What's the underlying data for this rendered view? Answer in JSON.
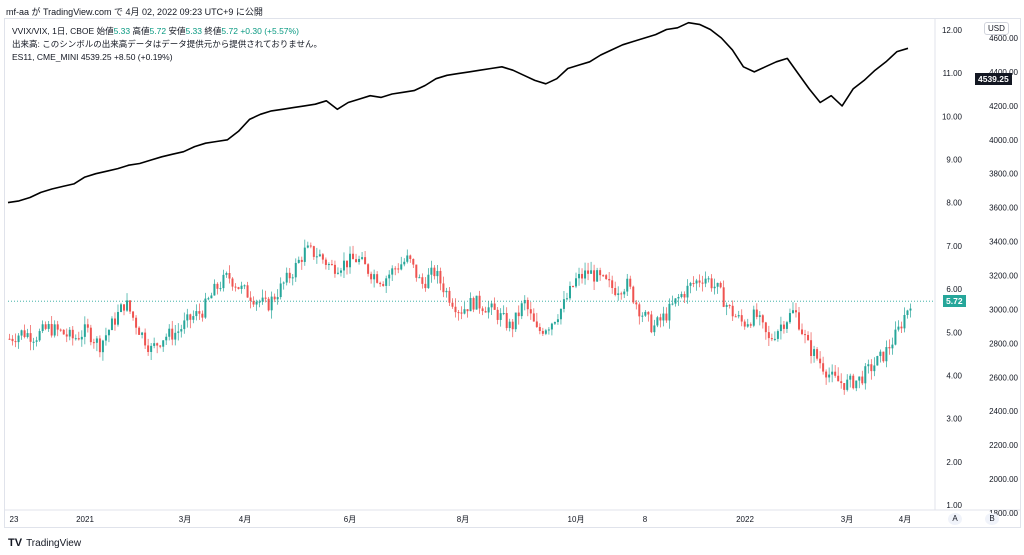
{
  "header": {
    "published_by": "mf-aa が TradingView.com で 4月 02, 2022 09:23 UTC+9 に公開"
  },
  "legend": {
    "symbol": "VVIX/VIX, 1日, CBOE",
    "open_label": "始値",
    "open": "5.33",
    "high_label": "高値",
    "high": "5.72",
    "low_label": "安値",
    "low": "5.33",
    "close_label": "終値",
    "close": "5.72",
    "change": "+0.30 (+5.57%)",
    "volume_note": "出来高: このシンボルの出来高データはデータ提供元から提供されておりません。",
    "es_symbol": "ES11, CME_MINI",
    "es_price": "4539.25",
    "es_change": "+8.50 (+0.19%)"
  },
  "axis": {
    "currency": "USD",
    "left_scale_labels": [
      "12.00",
      "11.00",
      "10.00",
      "9.00",
      "8.00",
      "7.00",
      "6.00",
      "5.00",
      "4.00",
      "3.00",
      "2.00",
      "1.00"
    ],
    "right_scale_labels": [
      "4600.00",
      "4400.00",
      "4200.00",
      "4000.00",
      "3800.00",
      "3600.00",
      "3400.00",
      "3200.00",
      "3000.00",
      "2800.00",
      "2600.00",
      "2400.00",
      "2200.00",
      "2000.00",
      "1800.00"
    ],
    "x_labels": [
      "23",
      "2021",
      "3月",
      "4月",
      "6月",
      "8月",
      "10月",
      "8",
      "2022",
      "3月",
      "4月"
    ],
    "btn_a": "A",
    "btn_b": "B"
  },
  "tags": {
    "es_last": "4539.25",
    "ratio_last": "5.72"
  },
  "colors": {
    "up": "#26a69a",
    "down": "#ef5350",
    "line": "#000000",
    "tag_green": "#26a69a"
  },
  "footer": {
    "brand": "TradingView"
  },
  "chart_data": {
    "type": "line",
    "series": [
      {
        "name": "ES11, CME_MINI",
        "values": [
          3630,
          3640,
          3660,
          3690,
          3710,
          3725,
          3740,
          3780,
          3800,
          3815,
          3830,
          3850,
          3860,
          3880,
          3900,
          3915,
          3930,
          3960,
          3980,
          3990,
          4000,
          4050,
          4120,
          4150,
          4170,
          4180,
          4190,
          4200,
          4210,
          4230,
          4180,
          4220,
          4240,
          4260,
          4250,
          4270,
          4280,
          4290,
          4320,
          4360,
          4380,
          4390,
          4400,
          4410,
          4420,
          4430,
          4410,
          4380,
          4350,
          4330,
          4360,
          4420,
          4440,
          4460,
          4500,
          4530,
          4560,
          4580,
          4600,
          4620,
          4650,
          4660,
          4690,
          4680,
          4650,
          4600,
          4530,
          4430,
          4400,
          4430,
          4460,
          4480,
          4390,
          4300,
          4220,
          4260,
          4200,
          4300,
          4350,
          4410,
          4460,
          4520,
          4539
        ]
      },
      {
        "name": "VVIX/VIX",
        "values": [
          4.85,
          5.0,
          4.9,
          5.1,
          5.0,
          4.85,
          5.05,
          4.7,
          5.2,
          5.7,
          5.1,
          4.6,
          4.9,
          5.0,
          5.3,
          5.5,
          6.0,
          6.3,
          6.0,
          5.8,
          5.6,
          6.0,
          6.4,
          6.9,
          6.8,
          6.5,
          6.6,
          6.7,
          6.4,
          6.2,
          6.5,
          6.7,
          6.1,
          6.4,
          5.9,
          5.5,
          5.7,
          5.6,
          5.4,
          5.1,
          5.7,
          5.0,
          5.2,
          5.6,
          6.2,
          6.4,
          6.2,
          6.0,
          6.1,
          5.5,
          5.1,
          5.4,
          5.8,
          6.1,
          6.3,
          6.0,
          5.5,
          5.2,
          5.4,
          4.8,
          5.2,
          5.5,
          4.7,
          4.3,
          3.9,
          3.8,
          3.9,
          4.2,
          4.5,
          5.0,
          5.72
        ]
      }
    ],
    "right_axis": {
      "label": "ES11 (USD)",
      "range": [
        1800,
        4600
      ]
    },
    "left_axis": {
      "label": "VVIX/VIX",
      "range": [
        1,
        12
      ]
    },
    "grid": false,
    "legend": "top-left"
  }
}
